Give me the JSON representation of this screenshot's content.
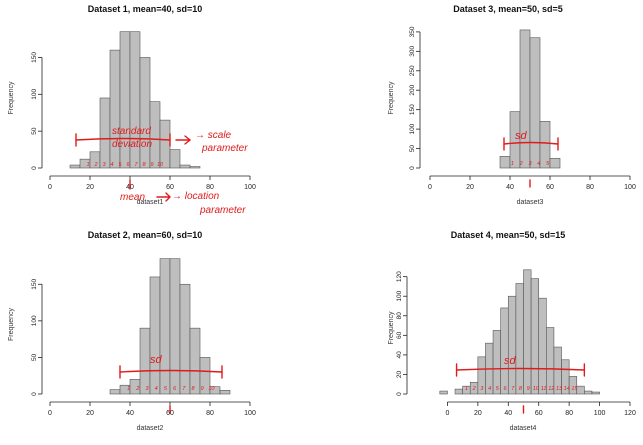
{
  "figure": {
    "accent_ink": "#e01b1b",
    "bar_fill": "#bebebe",
    "bar_stroke": "#555555"
  },
  "chart_data": [
    {
      "type": "bar",
      "title": "Dataset 1, mean=40, sd=10",
      "xlabel": "dataset1",
      "ylabel": "Frequency",
      "xlim": [
        0,
        100
      ],
      "ylim": [
        0,
        190
      ],
      "xticks": [
        0,
        20,
        40,
        60,
        80,
        100
      ],
      "yticks": [
        0,
        50,
        100,
        150
      ],
      "bin_width": 5,
      "bin_starts": [
        10,
        15,
        20,
        25,
        30,
        35,
        40,
        45,
        50,
        55,
        60,
        65,
        70
      ],
      "values": [
        4,
        12,
        22,
        95,
        160,
        185,
        185,
        150,
        90,
        65,
        25,
        4,
        2
      ],
      "annotations": [
        "standard",
        "deviation",
        "→ scale",
        "parameter",
        "mean",
        "→ location",
        "parameter",
        "1",
        "2",
        "3",
        "4",
        "5",
        "6",
        "7",
        "8",
        "9",
        "10"
      ]
    },
    {
      "type": "bar",
      "title": "Dataset 3, mean=50, sd=5",
      "xlabel": "dataset3",
      "ylabel": "Frequency",
      "xlim": [
        0,
        100
      ],
      "ylim": [
        0,
        360
      ],
      "xticks": [
        0,
        20,
        40,
        60,
        80,
        100
      ],
      "yticks": [
        0,
        50,
        100,
        150,
        200,
        250,
        300,
        350
      ],
      "bin_width": 5,
      "bin_starts": [
        35,
        40,
        45,
        50,
        55,
        60
      ],
      "values": [
        30,
        145,
        355,
        335,
        120,
        25
      ],
      "annotations": [
        "sd",
        "1",
        "2",
        "3",
        "4",
        "5"
      ]
    },
    {
      "type": "bar",
      "title": "Dataset 2, mean=60, sd=10",
      "xlabel": "dataset2",
      "ylabel": "Frequency",
      "xlim": [
        0,
        100
      ],
      "ylim": [
        0,
        190
      ],
      "xticks": [
        0,
        20,
        40,
        60,
        80,
        100
      ],
      "yticks": [
        0,
        50,
        100,
        150
      ],
      "bin_width": 5,
      "bin_starts": [
        30,
        35,
        40,
        45,
        50,
        55,
        60,
        65,
        70,
        75,
        80,
        85
      ],
      "values": [
        6,
        12,
        20,
        90,
        160,
        185,
        185,
        150,
        90,
        50,
        10,
        5
      ],
      "annotations": [
        "sd",
        "1",
        "2",
        "3",
        "4",
        "5",
        "6",
        "7",
        "8",
        "9",
        "10"
      ]
    },
    {
      "type": "bar",
      "title": "Dataset 4, mean=50, sd=15",
      "xlabel": "dataset4",
      "ylabel": "Frequency",
      "xlim": [
        -20,
        120
      ],
      "ylim": [
        0,
        135
      ],
      "xticks": [
        0,
        20,
        40,
        60,
        80,
        100,
        120
      ],
      "yticks": [
        0,
        20,
        40,
        60,
        80,
        100,
        120
      ],
      "bin_width": 5,
      "bin_starts": [
        -5,
        0,
        5,
        10,
        15,
        20,
        25,
        30,
        35,
        40,
        45,
        50,
        55,
        60,
        65,
        70,
        75,
        80,
        85,
        90,
        95
      ],
      "values": [
        3,
        0,
        5,
        8,
        12,
        38,
        52,
        65,
        88,
        100,
        113,
        127,
        118,
        98,
        68,
        48,
        35,
        18,
        8,
        3,
        2
      ],
      "annotations": [
        "sd",
        "1",
        "2",
        "3",
        "4",
        "5",
        "6",
        "7",
        "8",
        "9",
        "10",
        "11",
        "12",
        "13",
        "14",
        "15"
      ]
    }
  ]
}
